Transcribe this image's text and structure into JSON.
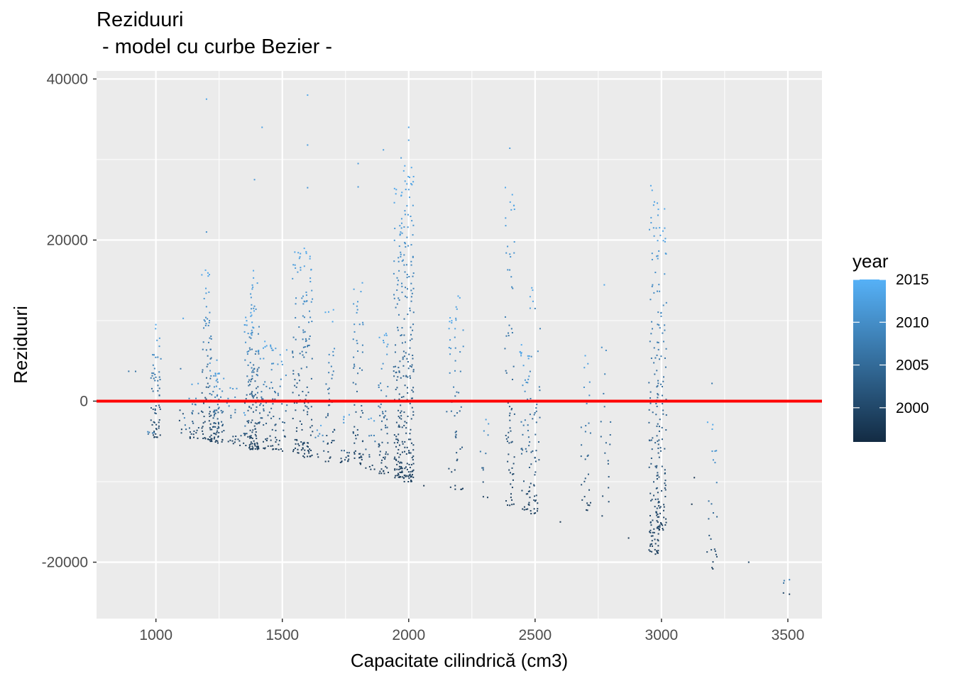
{
  "chart_data": {
    "type": "scatter",
    "title": "Reziduuri",
    "subtitle": " - model cu curbe Bezier -",
    "xlabel": "Capacitate cilindrică (cm3)",
    "ylabel": "Reziduuri",
    "xlim": [
      765,
      3635
    ],
    "ylim": [
      -27000,
      41000
    ],
    "x_ticks": [
      1000,
      1500,
      2000,
      2500,
      3000,
      3500
    ],
    "x_tick_labels": [
      "1000",
      "1500",
      "2000",
      "2500",
      "3000",
      "3500"
    ],
    "y_ticks": [
      -20000,
      0,
      20000,
      40000
    ],
    "y_tick_labels": [
      "-20000",
      "0",
      "20000",
      "40000"
    ],
    "grid": true,
    "reference_line": {
      "y": 0,
      "color": "#ff0000"
    },
    "legend": {
      "title": "year",
      "position": "right",
      "range": [
        1996,
        2015
      ],
      "ticks": [
        2000,
        2005,
        2010,
        2015
      ],
      "tick_labels": [
        "2000",
        "2005",
        "2010",
        "2015"
      ],
      "low_color": "#132b43",
      "high_color": "#56b1f7"
    },
    "columns": [
      {
        "x": 900,
        "min": 3500,
        "max": 3900,
        "n": 2
      },
      {
        "x": 980,
        "min": -4500,
        "max": -3500,
        "n": 6
      },
      {
        "x": 1000,
        "min": -4500,
        "max": 9600,
        "n": 60
      },
      {
        "x": 1100,
        "min": -4000,
        "max": 11000,
        "n": 6
      },
      {
        "x": 1120,
        "min": -4600,
        "max": -1000,
        "n": 6
      },
      {
        "x": 1150,
        "min": -4800,
        "max": 3000,
        "n": 25
      },
      {
        "x": 1200,
        "min": -4800,
        "max": 16500,
        "n": 70
      },
      {
        "x": 1230,
        "min": -5000,
        "max": 6500,
        "n": 40
      },
      {
        "x": 1250,
        "min": -5200,
        "max": 4000,
        "n": 50
      },
      {
        "x": 1300,
        "min": -5500,
        "max": 3000,
        "n": 20
      },
      {
        "x": 1340,
        "min": -5500,
        "max": -1000,
        "n": 10
      },
      {
        "x": 1370,
        "min": -5800,
        "max": 11500,
        "n": 60
      },
      {
        "x": 1390,
        "min": -6000,
        "max": 17000,
        "n": 90
      },
      {
        "x": 1420,
        "min": -6000,
        "max": 7500,
        "n": 40
      },
      {
        "x": 1460,
        "min": -6000,
        "max": 8500,
        "n": 40
      },
      {
        "x": 1500,
        "min": -6200,
        "max": 7000,
        "n": 25
      },
      {
        "x": 1560,
        "min": -6500,
        "max": 20000,
        "n": 60
      },
      {
        "x": 1600,
        "min": -7000,
        "max": 19000,
        "n": 90
      },
      {
        "x": 1650,
        "min": -7000,
        "max": -3000,
        "n": 10
      },
      {
        "x": 1690,
        "min": -7500,
        "max": 11500,
        "n": 40
      },
      {
        "x": 1750,
        "min": -7800,
        "max": -1500,
        "n": 20
      },
      {
        "x": 1800,
        "min": -8000,
        "max": 16000,
        "n": 60
      },
      {
        "x": 1850,
        "min": -8500,
        "max": -1500,
        "n": 15
      },
      {
        "x": 1900,
        "min": -9000,
        "max": 9000,
        "n": 60
      },
      {
        "x": 1960,
        "min": -9500,
        "max": 27000,
        "n": 140
      },
      {
        "x": 2000,
        "min": -10000,
        "max": 30000,
        "n": 160
      },
      {
        "x": 2170,
        "min": -11000,
        "max": 10500,
        "n": 25
      },
      {
        "x": 2200,
        "min": -11500,
        "max": 14000,
        "n": 30
      },
      {
        "x": 2300,
        "min": -12000,
        "max": -1000,
        "n": 12
      },
      {
        "x": 2400,
        "min": -13000,
        "max": 27000,
        "n": 70
      },
      {
        "x": 2460,
        "min": -13500,
        "max": 7000,
        "n": 50
      },
      {
        "x": 2500,
        "min": -14000,
        "max": 15000,
        "n": 50
      },
      {
        "x": 2700,
        "min": -14000,
        "max": 6500,
        "n": 30
      },
      {
        "x": 2780,
        "min": -16500,
        "max": 15500,
        "n": 20
      },
      {
        "x": 2970,
        "min": -19000,
        "max": 28500,
        "n": 120
      },
      {
        "x": 3000,
        "min": -16000,
        "max": 24000,
        "n": 110
      },
      {
        "x": 3200,
        "min": -21000,
        "max": -2500,
        "n": 25
      },
      {
        "x": 3330,
        "min": -20000,
        "max": -20000,
        "n": 1
      },
      {
        "x": 3500,
        "min": -24000,
        "max": -21000,
        "n": 5
      }
    ],
    "outliers": [
      {
        "x": 1200,
        "y": 37500
      },
      {
        "x": 1200,
        "y": 21000
      },
      {
        "x": 1420,
        "y": 34000
      },
      {
        "x": 1390,
        "y": 27500
      },
      {
        "x": 1600,
        "y": 38000
      },
      {
        "x": 1600,
        "y": 31800
      },
      {
        "x": 1600,
        "y": 26500
      },
      {
        "x": 1800,
        "y": 29500
      },
      {
        "x": 1800,
        "y": 26600
      },
      {
        "x": 1900,
        "y": 31200
      },
      {
        "x": 2000,
        "y": 34000
      },
      {
        "x": 2000,
        "y": 32400
      },
      {
        "x": 1970,
        "y": 30200
      },
      {
        "x": 2400,
        "y": 31400
      },
      {
        "x": 2500,
        "y": 11500
      },
      {
        "x": 2520,
        "y": 9000
      },
      {
        "x": 3200,
        "y": 2200
      },
      {
        "x": 2060,
        "y": -10500
      },
      {
        "x": 2600,
        "y": -15000
      },
      {
        "x": 2870,
        "y": -17000
      },
      {
        "x": 3130,
        "y": -9500
      },
      {
        "x": 3120,
        "y": -12800
      }
    ]
  }
}
